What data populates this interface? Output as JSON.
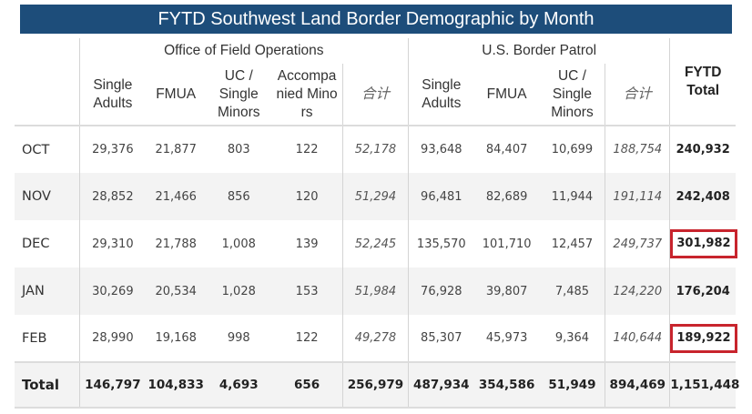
{
  "title": "FYTD Southwest Land Border Demographic by Month",
  "groups": {
    "ofo": "Office of Field Operations",
    "usbp": "U.S. Border Patrol"
  },
  "columns": {
    "ofo_single": "Single Adults",
    "ofo_fmua": "FMUA",
    "ofo_uc": "UC / Single Minors",
    "ofo_acc": "Accompa nied Mino rs",
    "ofo_sum": "合计",
    "usbp_single": "Single Adults",
    "usbp_fmua": "FMUA",
    "usbp_uc": "UC / Single Minors",
    "usbp_sum": "合计",
    "fytd_total": "FYTD Total"
  },
  "rows": [
    {
      "month": "OCT",
      "v": [
        "29,376",
        "21,877",
        "803",
        "122",
        "52,178",
        "93,648",
        "84,407",
        "10,699",
        "188,754",
        "240,932"
      ],
      "highlight": false
    },
    {
      "month": "NOV",
      "v": [
        "28,852",
        "21,466",
        "856",
        "120",
        "51,294",
        "96,481",
        "82,689",
        "11,944",
        "191,114",
        "242,408"
      ],
      "highlight": false
    },
    {
      "month": "DEC",
      "v": [
        "29,310",
        "21,788",
        "1,008",
        "139",
        "52,245",
        "135,570",
        "101,710",
        "12,457",
        "249,737",
        "301,982"
      ],
      "highlight": true
    },
    {
      "month": "JAN",
      "v": [
        "30,269",
        "20,534",
        "1,028",
        "153",
        "51,984",
        "76,928",
        "39,807",
        "7,485",
        "124,220",
        "176,204"
      ],
      "highlight": false
    },
    {
      "month": "FEB",
      "v": [
        "28,990",
        "19,168",
        "998",
        "122",
        "49,278",
        "85,307",
        "45,973",
        "9,364",
        "140,644",
        "189,922"
      ],
      "highlight": true
    }
  ],
  "total": {
    "label": "Total",
    "v": [
      "146,797",
      "104,833",
      "4,693",
      "656",
      "256,979",
      "487,934",
      "354,586",
      "51,949",
      "894,469",
      "1,151,448"
    ]
  },
  "colors": {
    "title_bg": "#1d4d7a",
    "highlight_border": "#c8242d",
    "row_shade": "#f3f3f3"
  }
}
